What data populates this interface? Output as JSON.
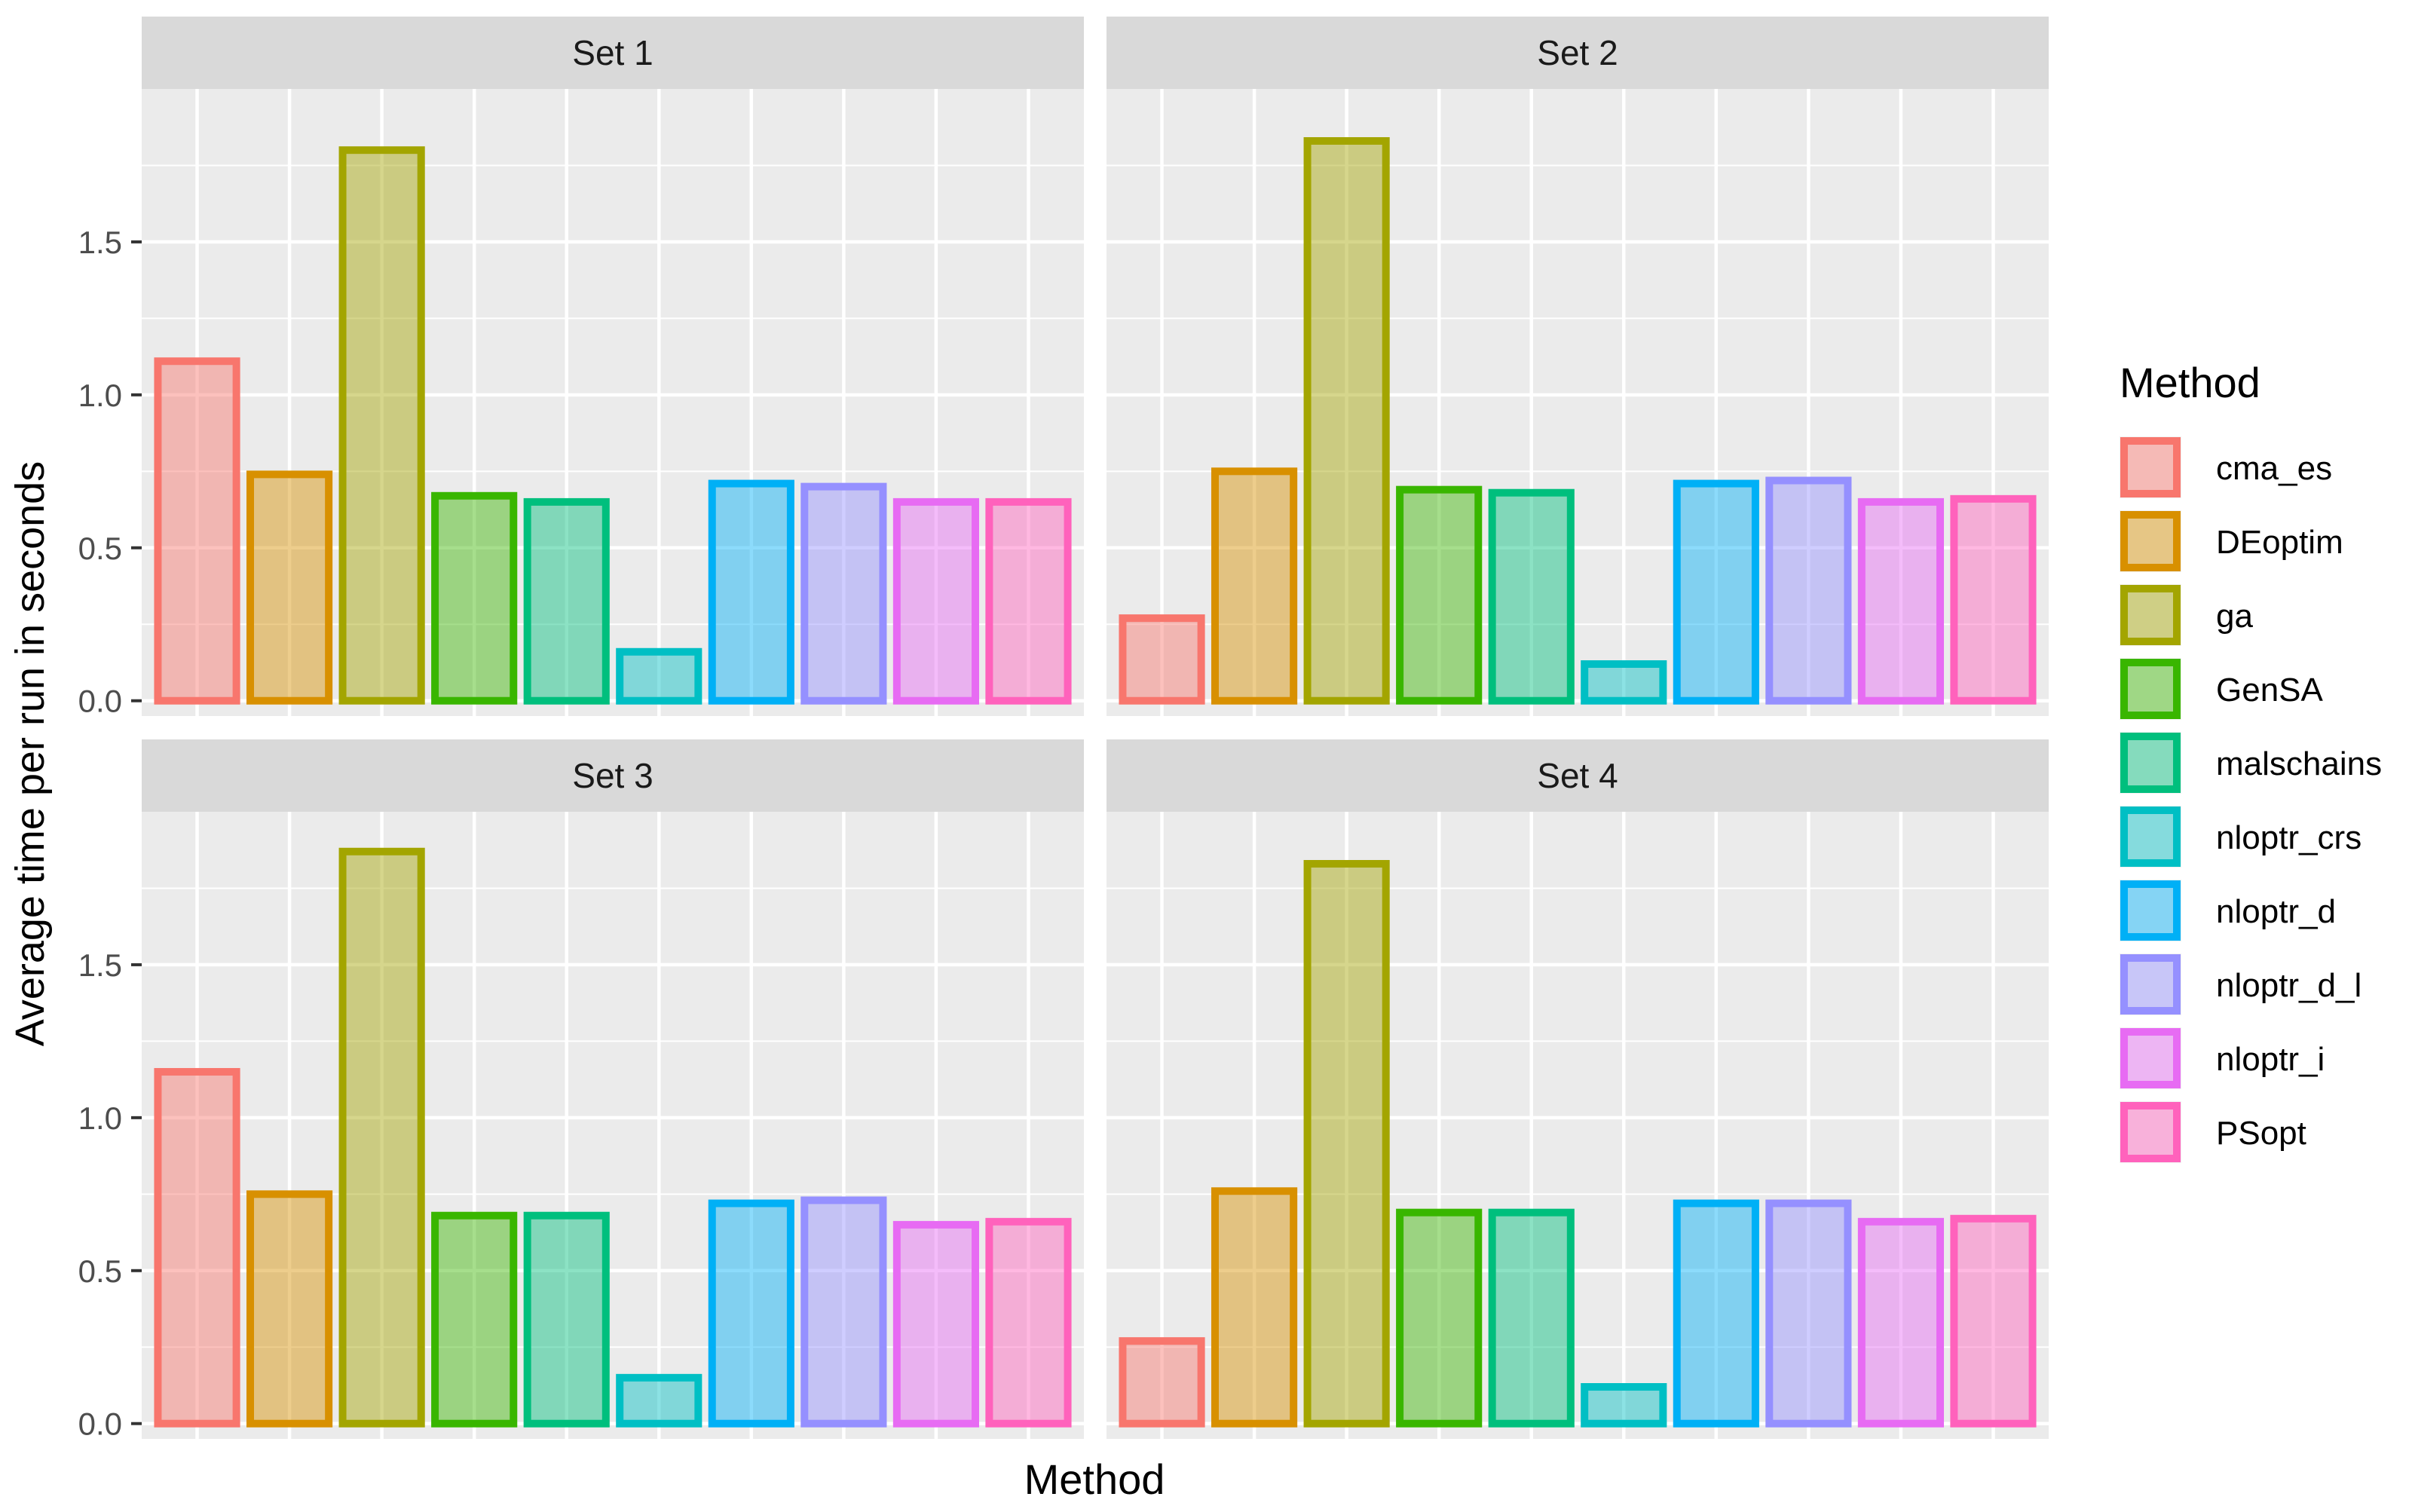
{
  "chart_data": {
    "type": "bar",
    "ylabel": "Average time per run in seconds",
    "xlabel": "Method",
    "ylim": [
      -0.05,
      2.0
    ],
    "yticks": [
      0.0,
      0.5,
      1.0,
      1.5
    ],
    "ytick_labels": [
      "0.0",
      "0.5",
      "1.0",
      "1.5"
    ],
    "categories": [
      "cma_es",
      "DEoptim",
      "ga",
      "GenSA",
      "malschains",
      "nloptr_crs",
      "nloptr_d",
      "nloptr_d_l",
      "nloptr_i",
      "PSopt"
    ],
    "colors": [
      "#F8766D",
      "#D89000",
      "#A3A500",
      "#39B600",
      "#00BF7D",
      "#00BFC4",
      "#00B0F6",
      "#9590FF",
      "#E76BF3",
      "#FF62BC"
    ],
    "legend": {
      "title": "Method",
      "position": "right",
      "entries": [
        "cma_es",
        "DEoptim",
        "ga",
        "GenSA",
        "malschains",
        "nloptr_crs",
        "nloptr_d",
        "nloptr_d_l",
        "nloptr_i",
        "PSopt"
      ]
    },
    "panels": [
      {
        "title": "Set 1",
        "values": [
          1.11,
          0.74,
          1.8,
          0.67,
          0.65,
          0.16,
          0.71,
          0.7,
          0.65,
          0.65
        ]
      },
      {
        "title": "Set 2",
        "values": [
          0.27,
          0.75,
          1.83,
          0.69,
          0.68,
          0.12,
          0.71,
          0.72,
          0.65,
          0.66
        ]
      },
      {
        "title": "Set 3",
        "values": [
          1.15,
          0.75,
          1.87,
          0.68,
          0.68,
          0.15,
          0.72,
          0.73,
          0.65,
          0.66
        ]
      },
      {
        "title": "Set 4",
        "values": [
          0.27,
          0.76,
          1.83,
          0.69,
          0.69,
          0.12,
          0.72,
          0.72,
          0.66,
          0.67
        ]
      }
    ]
  }
}
